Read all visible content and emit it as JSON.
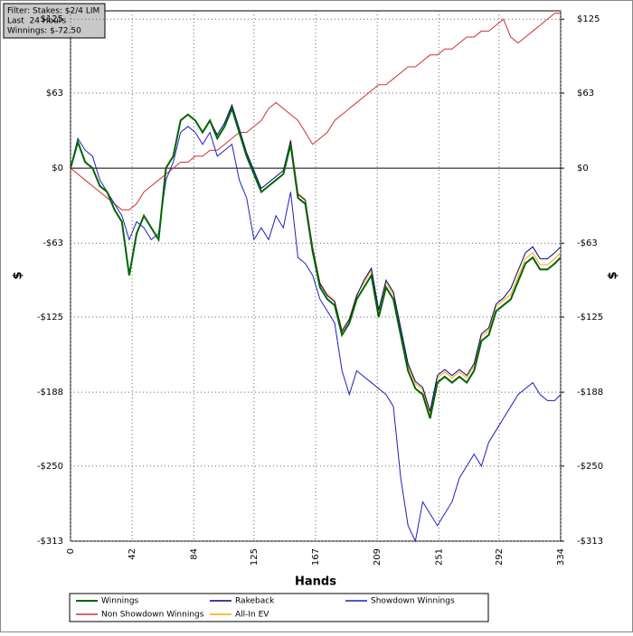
{
  "chart_data": {
    "type": "line",
    "filter_box": [
      "Filter: Stakes: $2/4 LIM",
      "Last  24 Hours",
      "Winnings: $-72.50"
    ],
    "xlabel": "Hands",
    "ylabel": "$",
    "y2label": "$",
    "xlim": [
      0,
      334
    ],
    "xticks": [
      0,
      42,
      84,
      125,
      167,
      209,
      251,
      292,
      334
    ],
    "ylim": [
      -313,
      132
    ],
    "yticks": [
      {
        "value": -313,
        "label": "-$313"
      },
      {
        "value": -250,
        "label": "-$250"
      },
      {
        "value": -188,
        "label": "-$188"
      },
      {
        "value": -125,
        "label": "-$125"
      },
      {
        "value": -63,
        "label": "-$63"
      },
      {
        "value": 0,
        "label": "$0"
      },
      {
        "value": 63,
        "label": "$63"
      },
      {
        "value": 125,
        "label": "$125"
      }
    ],
    "y2lim": [
      -313,
      132
    ],
    "y2ticks": [
      {
        "value": -313,
        "label": "-$313"
      },
      {
        "value": -250,
        "label": "-$250"
      },
      {
        "value": -188,
        "label": "-$188"
      },
      {
        "value": -125,
        "label": "-$125"
      },
      {
        "value": -63,
        "label": "-$63"
      },
      {
        "value": 0,
        "label": "$0"
      },
      {
        "value": 63,
        "label": "$63"
      },
      {
        "value": 125,
        "label": "$125"
      }
    ],
    "grid": true,
    "x": [
      0,
      5,
      10,
      15,
      20,
      25,
      30,
      35,
      40,
      45,
      50,
      55,
      60,
      65,
      70,
      75,
      80,
      85,
      90,
      95,
      100,
      105,
      110,
      115,
      120,
      125,
      130,
      135,
      140,
      145,
      150,
      155,
      160,
      165,
      170,
      175,
      180,
      185,
      190,
      195,
      200,
      205,
      210,
      215,
      220,
      225,
      230,
      235,
      240,
      245,
      250,
      255,
      260,
      265,
      270,
      275,
      280,
      285,
      290,
      295,
      300,
      305,
      310,
      315,
      320,
      325,
      330,
      334
    ],
    "series": [
      {
        "name": "Winnings",
        "color": "#006400",
        "values": [
          0,
          22,
          5,
          0,
          -15,
          -20,
          -35,
          -45,
          -90,
          -55,
          -40,
          -50,
          -60,
          0,
          10,
          40,
          45,
          40,
          30,
          40,
          25,
          35,
          50,
          30,
          10,
          -5,
          -20,
          -15,
          -10,
          -5,
          20,
          -25,
          -30,
          -70,
          -100,
          -110,
          -115,
          -140,
          -130,
          -110,
          -100,
          -90,
          -125,
          -100,
          -110,
          -140,
          -170,
          -185,
          -190,
          -210,
          -180,
          -175,
          -180,
          -175,
          -180,
          -170,
          -145,
          -140,
          -120,
          -115,
          -110,
          -95,
          -80,
          -75,
          -85,
          -85,
          -80,
          -75
        ]
      },
      {
        "name": "Rakeback",
        "color": "#000080",
        "values": [
          0,
          22,
          5,
          0,
          -15,
          -20,
          -35,
          -45,
          -90,
          -55,
          -40,
          -50,
          -60,
          0,
          10,
          40,
          45,
          40,
          30,
          40,
          28,
          38,
          53,
          33,
          13,
          -2,
          -17,
          -12,
          -7,
          -2,
          23,
          -22,
          -27,
          -67,
          -97,
          -107,
          -112,
          -137,
          -127,
          -107,
          -94,
          -84,
          -119,
          -94,
          -104,
          -134,
          -164,
          -179,
          -184,
          -204,
          -174,
          -169,
          -174,
          -169,
          -174,
          -164,
          -139,
          -134,
          -114,
          -109,
          -101,
          -86,
          -71,
          -66,
          -76,
          -76,
          -71,
          -66
        ]
      },
      {
        "name": "Showdown Winnings",
        "color": "#1f1fbf",
        "values": [
          0,
          25,
          15,
          10,
          -10,
          -20,
          -30,
          -40,
          -60,
          -45,
          -50,
          -60,
          -55,
          -10,
          5,
          30,
          35,
          30,
          20,
          30,
          10,
          15,
          20,
          -10,
          -25,
          -60,
          -50,
          -60,
          -40,
          -50,
          -20,
          -75,
          -80,
          -90,
          -110,
          -120,
          -130,
          -170,
          -190,
          -170,
          -175,
          -180,
          -185,
          -190,
          -200,
          -260,
          -300,
          -313,
          -280,
          -290,
          -300,
          -290,
          -280,
          -260,
          -250,
          -240,
          -250,
          -230,
          -220,
          -210,
          -200,
          -190,
          -185,
          -180,
          -190,
          -195,
          -195,
          -190
        ]
      },
      {
        "name": "Non Showdown Winnings",
        "color": "#d03030",
        "values": [
          0,
          -5,
          -10,
          -15,
          -20,
          -25,
          -30,
          -35,
          -35,
          -30,
          -20,
          -15,
          -10,
          -5,
          0,
          5,
          5,
          10,
          10,
          15,
          15,
          20,
          25,
          30,
          30,
          35,
          40,
          50,
          55,
          50,
          45,
          40,
          30,
          20,
          25,
          30,
          40,
          45,
          50,
          55,
          60,
          65,
          70,
          70,
          75,
          80,
          85,
          85,
          90,
          95,
          95,
          100,
          100,
          105,
          110,
          110,
          115,
          115,
          120,
          125,
          110,
          105,
          110,
          115,
          120,
          125,
          130,
          130
        ]
      },
      {
        "name": "All-In EV",
        "color": "#ffa500",
        "values": [
          0,
          22,
          5,
          0,
          -15,
          -20,
          -35,
          -45,
          -90,
          -55,
          -40,
          -50,
          -60,
          0,
          10,
          40,
          45,
          40,
          30,
          40,
          25,
          35,
          50,
          30,
          10,
          -5,
          -20,
          -15,
          -10,
          -5,
          24,
          -21,
          -26,
          -66,
          -96,
          -106,
          -111,
          -136,
          -126,
          -106,
          -96,
          -86,
          -121,
          -96,
          -106,
          -136,
          -166,
          -181,
          -186,
          -206,
          -176,
          -171,
          -176,
          -171,
          -176,
          -166,
          -141,
          -136,
          -116,
          -111,
          -106,
          -91,
          -76,
          -71,
          -81,
          -81,
          -76,
          -71
        ]
      }
    ]
  }
}
